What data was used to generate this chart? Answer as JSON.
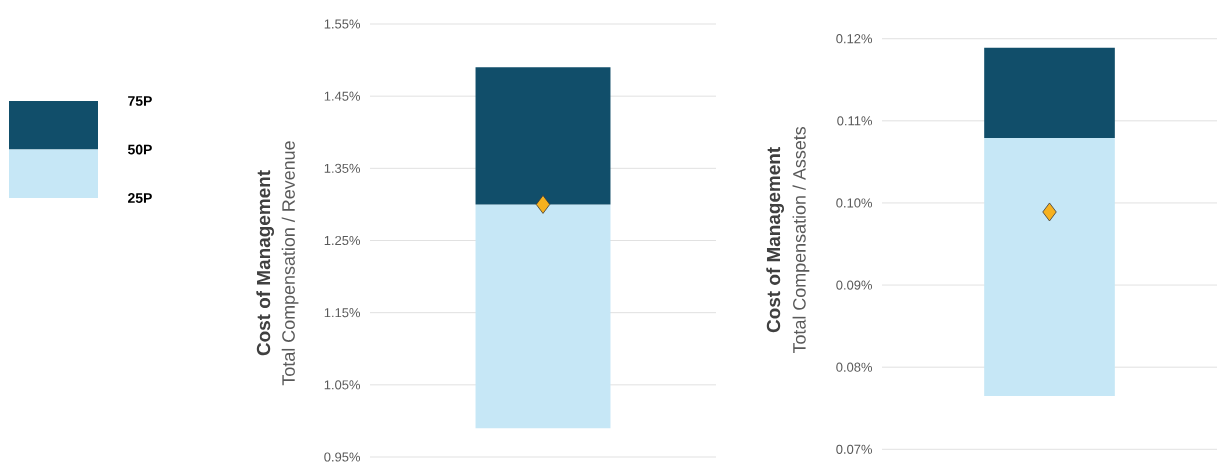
{
  "chart_data": [
    {
      "type": "other",
      "annotations": [
        "75P",
        "50P",
        "25P"
      ]
    },
    {
      "type": "bar",
      "categories": [
        null
      ],
      "series": [
        {
          "color": "#c6e7f6",
          "base": [
            0.99
          ],
          "values": [
            0.31
          ]
        },
        {
          "color": "#114e6a",
          "base": [
            1.3
          ],
          "values": [
            0.19
          ]
        },
        {
          "type": "scatter",
          "marker": "diamond",
          "color": "#f6b11f",
          "values": [
            1.3
          ]
        }
      ],
      "ylabel": "Cost of Management",
      "subtitle": "Total Compensation / Revenue",
      "ylim": [
        0.95,
        1.55
      ],
      "yticks": [
        {
          "value": 0.95,
          "label": "0.95%"
        },
        {
          "value": 1.05,
          "label": "1.05%"
        },
        {
          "value": 1.15,
          "label": "1.15%"
        },
        {
          "value": 1.25,
          "label": "1.25%"
        },
        {
          "value": 1.35,
          "label": "1.35%"
        },
        {
          "value": 1.45,
          "label": "1.45%"
        },
        {
          "value": 1.55,
          "label": "1.55%"
        }
      ],
      "grid": "y",
      "tick_labels": "y"
    },
    {
      "type": "bar",
      "categories": [
        null
      ],
      "series": [
        {
          "color": "#c6e7f6",
          "base": [
            0.0765
          ],
          "values": [
            0.0314
          ]
        },
        {
          "color": "#114e6a",
          "base": [
            0.1079
          ],
          "values": [
            0.011
          ]
        },
        {
          "type": "scatter",
          "marker": "diamond",
          "color": "#f6b11f",
          "values": [
            0.0989
          ]
        }
      ],
      "ylabel": "Cost of Management",
      "subtitle": "Total Compensation / Assets",
      "ylim": [
        0.07,
        0.12
      ],
      "yticks": [
        {
          "value": 0.07,
          "label": "0.07%"
        },
        {
          "value": 0.08,
          "label": "0.08%"
        },
        {
          "value": 0.09,
          "label": "0.09%"
        },
        {
          "value": 0.1,
          "label": "0.10%"
        },
        {
          "value": 0.11,
          "label": "0.11%"
        },
        {
          "value": 0.12,
          "label": "0.12%"
        }
      ],
      "grid": "y",
      "tick_labels": "y"
    }
  ]
}
